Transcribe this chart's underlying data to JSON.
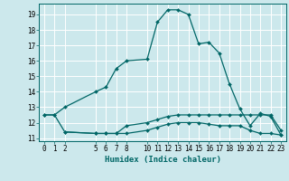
{
  "xlabel": "Humidex (Indice chaleur)",
  "bg_color": "#cce8ec",
  "grid_color": "#ffffff",
  "line_color": "#006666",
  "xlim": [
    -0.5,
    23.5
  ],
  "ylim": [
    10.8,
    19.7
  ],
  "yticks": [
    11,
    12,
    13,
    14,
    15,
    16,
    17,
    18,
    19
  ],
  "xticks": [
    0,
    1,
    2,
    5,
    6,
    7,
    8,
    10,
    11,
    12,
    13,
    14,
    15,
    16,
    17,
    18,
    19,
    20,
    21,
    22,
    23
  ],
  "series": [
    {
      "x": [
        0,
        1,
        2,
        5,
        6,
        7,
        8,
        10,
        11,
        12,
        13,
        14,
        15,
        16,
        17,
        18,
        19,
        20,
        21,
        22,
        23
      ],
      "y": [
        12.5,
        12.5,
        13.0,
        14.0,
        14.3,
        15.5,
        16.0,
        16.1,
        18.5,
        19.3,
        19.3,
        19.0,
        17.1,
        17.2,
        16.5,
        14.5,
        12.9,
        11.8,
        12.6,
        12.4,
        11.2
      ]
    },
    {
      "x": [
        0,
        1,
        2,
        5,
        6,
        7,
        8,
        10,
        11,
        12,
        13,
        14,
        15,
        16,
        17,
        18,
        19,
        20,
        21,
        22,
        23
      ],
      "y": [
        12.5,
        12.5,
        11.4,
        11.3,
        11.3,
        11.3,
        11.8,
        12.0,
        12.2,
        12.4,
        12.5,
        12.5,
        12.5,
        12.5,
        12.5,
        12.5,
        12.5,
        12.5,
        12.5,
        12.5,
        11.5
      ]
    },
    {
      "x": [
        2,
        5,
        6,
        7,
        8,
        10,
        11,
        12,
        13,
        14,
        15,
        16,
        17,
        18,
        19,
        20,
        21,
        22,
        23
      ],
      "y": [
        11.4,
        11.3,
        11.3,
        11.3,
        11.3,
        11.5,
        11.7,
        11.9,
        12.0,
        12.0,
        12.0,
        11.9,
        11.8,
        11.8,
        11.8,
        11.5,
        11.3,
        11.3,
        11.2
      ]
    }
  ],
  "xlabel_fontsize": 6.5,
  "tick_fontsize": 5.5,
  "marker_size": 2.0
}
